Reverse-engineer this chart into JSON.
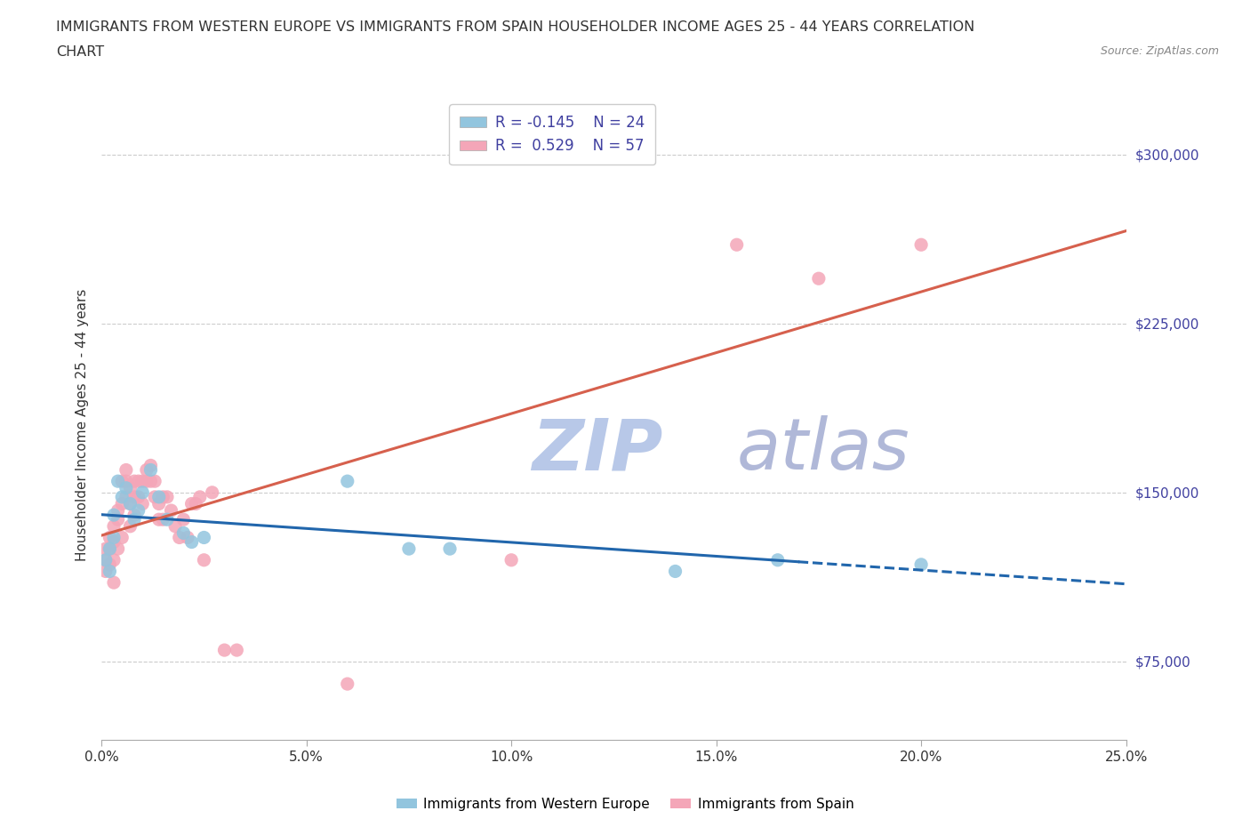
{
  "title_line1": "IMMIGRANTS FROM WESTERN EUROPE VS IMMIGRANTS FROM SPAIN HOUSEHOLDER INCOME AGES 25 - 44 YEARS CORRELATION",
  "title_line2": "CHART",
  "source_text": "Source: ZipAtlas.com",
  "watermark_zip": "ZIP",
  "watermark_atlas": "atlas",
  "xlabel": "",
  "ylabel": "Householder Income Ages 25 - 44 years",
  "xlim": [
    0.0,
    0.25
  ],
  "ylim": [
    40000,
    320000
  ],
  "yticks": [
    75000,
    150000,
    225000,
    300000
  ],
  "ytick_labels": [
    "$75,000",
    "$150,000",
    "$225,000",
    "$300,000"
  ],
  "xticks": [
    0.0,
    0.05,
    0.1,
    0.15,
    0.2,
    0.25
  ],
  "xtick_labels": [
    "0.0%",
    "5.0%",
    "10.0%",
    "15.0%",
    "20.0%",
    "25.0%"
  ],
  "legend_r1": "R = -0.145",
  "legend_n1": "N = 24",
  "legend_r2": "R =  0.529",
  "legend_n2": "N = 57",
  "color_blue": "#92c5de",
  "color_pink": "#f4a6b8",
  "color_blue_line": "#2166ac",
  "color_pink_line": "#d6604d",
  "color_legend_text": "#4040a0",
  "color_title": "#333333",
  "color_watermark_zip": "#b8c8e8",
  "color_watermark_atlas": "#b0b8d8",
  "color_source": "#888888",
  "color_grid": "#cccccc",
  "label_blue": "Immigrants from Western Europe",
  "label_pink": "Immigrants from Spain",
  "blue_x": [
    0.001,
    0.002,
    0.002,
    0.003,
    0.003,
    0.004,
    0.005,
    0.006,
    0.007,
    0.008,
    0.009,
    0.01,
    0.012,
    0.014,
    0.016,
    0.02,
    0.022,
    0.025,
    0.06,
    0.075,
    0.085,
    0.14,
    0.165,
    0.2
  ],
  "blue_y": [
    120000,
    115000,
    125000,
    130000,
    140000,
    155000,
    148000,
    152000,
    145000,
    138000,
    142000,
    150000,
    160000,
    148000,
    138000,
    132000,
    128000,
    130000,
    155000,
    125000,
    125000,
    115000,
    120000,
    118000
  ],
  "pink_x": [
    0.001,
    0.001,
    0.001,
    0.002,
    0.002,
    0.002,
    0.003,
    0.003,
    0.003,
    0.003,
    0.004,
    0.004,
    0.004,
    0.005,
    0.005,
    0.005,
    0.006,
    0.006,
    0.006,
    0.007,
    0.007,
    0.007,
    0.008,
    0.008,
    0.008,
    0.009,
    0.009,
    0.01,
    0.01,
    0.011,
    0.011,
    0.012,
    0.012,
    0.013,
    0.013,
    0.014,
    0.014,
    0.015,
    0.015,
    0.016,
    0.017,
    0.018,
    0.019,
    0.02,
    0.021,
    0.022,
    0.023,
    0.024,
    0.025,
    0.027,
    0.03,
    0.033,
    0.06,
    0.1,
    0.155,
    0.175,
    0.2
  ],
  "pink_y": [
    115000,
    120000,
    125000,
    118000,
    125000,
    130000,
    110000,
    120000,
    128000,
    135000,
    125000,
    138000,
    142000,
    130000,
    145000,
    155000,
    148000,
    155000,
    160000,
    135000,
    145000,
    152000,
    140000,
    148000,
    155000,
    148000,
    155000,
    145000,
    155000,
    155000,
    160000,
    155000,
    162000,
    148000,
    155000,
    138000,
    145000,
    138000,
    148000,
    148000,
    142000,
    135000,
    130000,
    138000,
    130000,
    145000,
    145000,
    148000,
    120000,
    150000,
    80000,
    80000,
    65000,
    120000,
    260000,
    245000,
    260000
  ]
}
